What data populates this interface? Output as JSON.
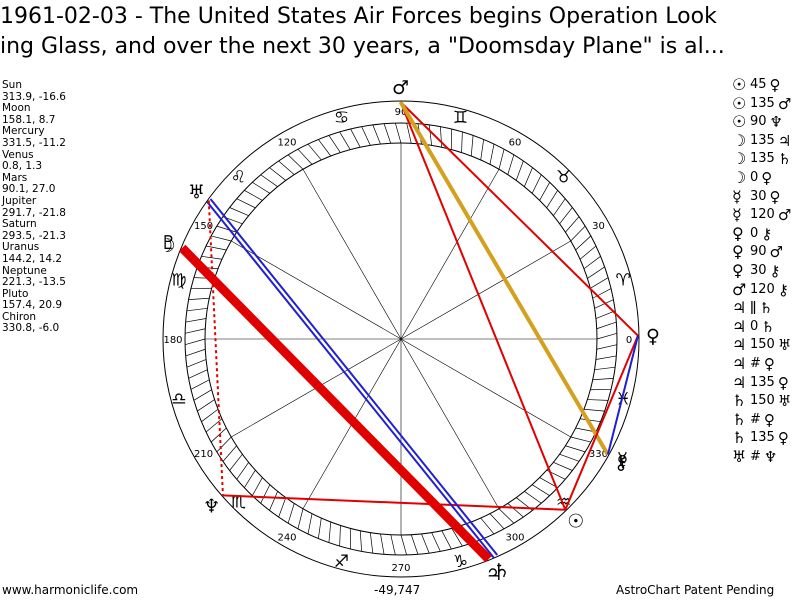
{
  "title": {
    "line1": "1961-02-03 - The United States Air Forces begins Operation Look",
    "line2": "ing Glass, and over the next 30 years, a \"Doomsday Plane\" is al..."
  },
  "planets": [
    {
      "name": "Sun",
      "coords": "313.9, -16.6"
    },
    {
      "name": "Moon",
      "coords": "158.1, 8.7"
    },
    {
      "name": "Mercury",
      "coords": "331.5, -11.2"
    },
    {
      "name": "Venus",
      "coords": "0.8, 1.3"
    },
    {
      "name": "Mars",
      "coords": "90.1, 27.0"
    },
    {
      "name": "Jupiter",
      "coords": "291.7, -21.8"
    },
    {
      "name": "Saturn",
      "coords": "293.5, -21.3"
    },
    {
      "name": "Uranus",
      "coords": "144.2, 14.2"
    },
    {
      "name": "Neptune",
      "coords": "221.3, -13.5"
    },
    {
      "name": "Pluto",
      "coords": "157.4, 20.9"
    },
    {
      "name": "Chiron",
      "coords": "330.8, -6.0"
    }
  ],
  "aspects": [
    {
      "p1": "☉",
      "value": "45",
      "p2": "♀"
    },
    {
      "p1": "☉",
      "value": "135",
      "p2": "♂"
    },
    {
      "p1": "☉",
      "value": "90",
      "p2": "♆"
    },
    {
      "p1": "☽",
      "value": "135",
      "p2": "♃"
    },
    {
      "p1": "☽",
      "value": "135",
      "p2": "♄"
    },
    {
      "p1": "☽",
      "value": "0",
      "p2": "♀"
    },
    {
      "p1": "☿",
      "value": "30",
      "p2": "♀"
    },
    {
      "p1": "☿",
      "value": "120",
      "p2": "♂"
    },
    {
      "p1": "♀",
      "value": "0",
      "p2": "⚷"
    },
    {
      "p1": "♀",
      "value": "90",
      "p2": "♂"
    },
    {
      "p1": "♀",
      "value": "30",
      "p2": "⚷"
    },
    {
      "p1": "♂",
      "value": "120",
      "p2": "⚷"
    },
    {
      "p1": "♃",
      "value": "ǁ",
      "p2": "♄"
    },
    {
      "p1": "♃",
      "value": "0",
      "p2": "♄"
    },
    {
      "p1": "♃",
      "value": "150",
      "p2": "♅"
    },
    {
      "p1": "♃",
      "value": "#",
      "p2": "♀"
    },
    {
      "p1": "♃",
      "value": "135",
      "p2": "♀"
    },
    {
      "p1": "♄",
      "value": "150",
      "p2": "♅"
    },
    {
      "p1": "♄",
      "value": "#",
      "p2": "♀"
    },
    {
      "p1": "♄",
      "value": "135",
      "p2": "♀"
    },
    {
      "p1": "♅",
      "value": "#",
      "p2": "♆"
    }
  ],
  "wheel": {
    "degree_labels": [
      "0",
      "30",
      "60",
      "90",
      "120",
      "150",
      "180",
      "210",
      "240",
      "270",
      "300",
      "330"
    ],
    "zodiac": [
      "♈",
      "♉",
      "♊",
      "♋",
      "♌",
      "♍",
      "♎",
      "♏",
      "♐",
      "♑",
      "♒",
      "♓"
    ],
    "planet_positions": [
      {
        "glyph": "☉",
        "lon": 313.9
      },
      {
        "glyph": "☽",
        "lon": 158.1
      },
      {
        "glyph": "☿",
        "lon": 331.5
      },
      {
        "glyph": "♀",
        "lon": 0.8
      },
      {
        "glyph": "♂",
        "lon": 90.1
      },
      {
        "glyph": "♃",
        "lon": 291.7
      },
      {
        "glyph": "♄",
        "lon": 293.5
      },
      {
        "glyph": "♅",
        "lon": 144.2
      },
      {
        "glyph": "♆",
        "lon": 221.3
      },
      {
        "glyph": "♇",
        "lon": 157.4
      },
      {
        "glyph": "⚷",
        "lon": 330.8
      }
    ],
    "aspect_lines": [
      {
        "a": 90.1,
        "b": 0.8,
        "color": "#e00000",
        "kind": "solid"
      },
      {
        "a": 90.1,
        "b": 313.9,
        "color": "#e00000",
        "kind": "solid"
      },
      {
        "a": 90.1,
        "b": 330.8,
        "color": "#d4a020",
        "kind": "thick"
      },
      {
        "a": 0.8,
        "b": 313.9,
        "color": "#e00000",
        "kind": "solid"
      },
      {
        "a": 0.8,
        "b": 330.8,
        "color": "#2020d0",
        "kind": "solid"
      },
      {
        "a": 313.9,
        "b": 221.3,
        "color": "#e00000",
        "kind": "solid"
      },
      {
        "a": 144.2,
        "b": 293.5,
        "color": "#2020d0",
        "kind": "double"
      },
      {
        "a": 157.4,
        "b": 291.7,
        "color": "#e00000",
        "kind": "heavy"
      },
      {
        "a": 144.2,
        "b": 221.3,
        "color": "#e00000",
        "kind": "dotted"
      }
    ],
    "colors": {
      "red": "#e00000",
      "blue": "#2020d0",
      "gold": "#d4a020"
    }
  },
  "footer": {
    "site": "www.harmoniclife.com",
    "value": "-49,747",
    "credit": "AstroChart Patent Pending"
  }
}
